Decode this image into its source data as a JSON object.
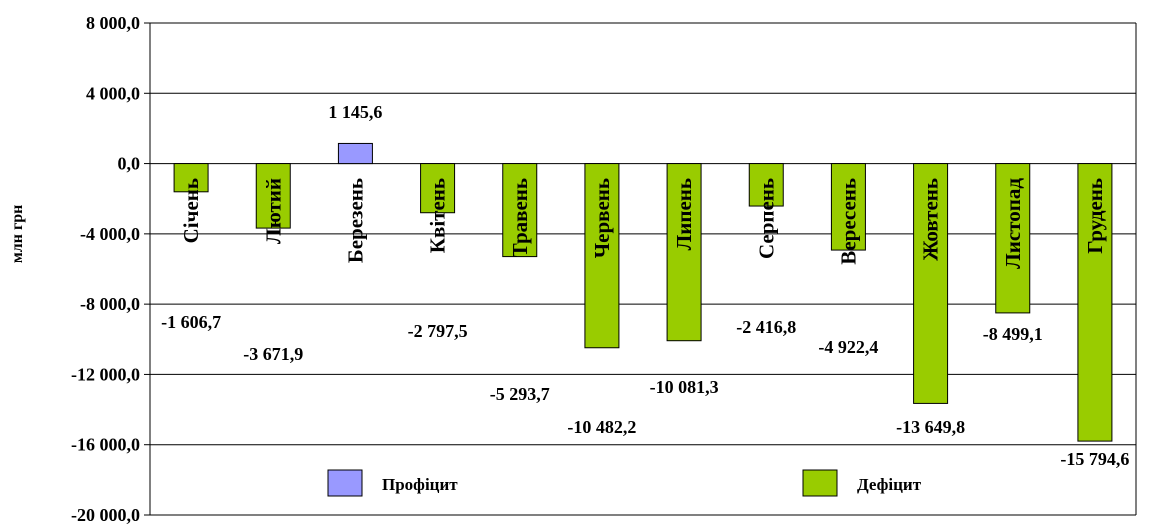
{
  "chart_data": {
    "type": "bar",
    "ylabel": "млн грн",
    "ylim": [
      -20000,
      8000
    ],
    "yticks": [
      8000,
      4000,
      0,
      -4000,
      -8000,
      -12000,
      -16000,
      -20000
    ],
    "ytick_labels": [
      "8 000,0",
      "4 000,0",
      "0,0",
      "-4 000,0",
      "-8 000,0",
      "-12 000,0",
      "-16 000,0",
      "-20 000,0"
    ],
    "grid": true,
    "legend_position": "bottom",
    "categories": [
      "Січень",
      "Лютий",
      "Березень",
      "Квітень",
      "Травень",
      "Червень",
      "Липень",
      "Серпень",
      "Вересень",
      "Жовтень",
      "Листопад",
      "Грудень"
    ],
    "values": [
      -1606.7,
      -3671.9,
      1145.6,
      -2797.5,
      -5293.7,
      -10482.2,
      -10081.3,
      -2416.8,
      -4922.4,
      -13649.8,
      -8499.1,
      -15794.6
    ],
    "value_labels": [
      "-1 606,7",
      "-3 671,9",
      "1 145,6",
      "-2 797,5",
      "-5 293,7",
      "-10 482,2",
      "-10 081,3",
      "-2 416,8",
      "-4 922,4",
      "-13 649,8",
      "-8 499,1",
      "-15 794,6"
    ],
    "series": [
      {
        "name": "Профіцит",
        "color": "#9999ff"
      },
      {
        "name": "Дефіцит",
        "color": "#99cc00"
      }
    ]
  }
}
